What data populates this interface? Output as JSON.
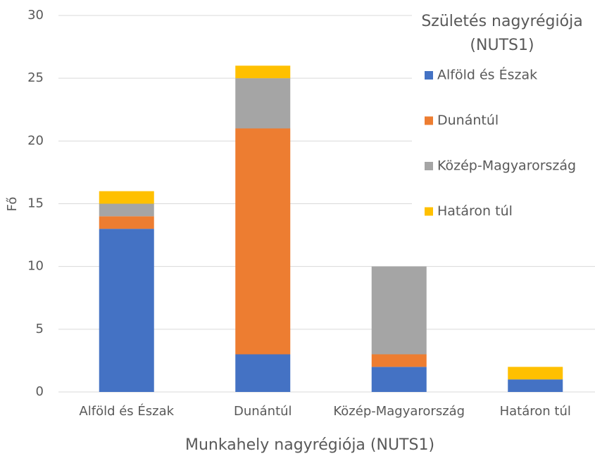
{
  "chart_data": {
    "type": "stacked_bar",
    "x_label": "Munkahely nagyrégiója (NUTS1)",
    "y_label": "Fő",
    "legend_title": "Születés nagyrégiója (NUTS1)",
    "categories": [
      "Alföld és Észak",
      "Dunántúl",
      "Közép-Magyarország",
      "Határon túl"
    ],
    "series": [
      {
        "name": "Alföld és Észak",
        "color": "#4472c4",
        "values": [
          13,
          3,
          2,
          1
        ]
      },
      {
        "name": "Dunántúl",
        "color": "#ed7d31",
        "values": [
          1,
          18,
          1,
          0
        ]
      },
      {
        "name": "Közép-Magyarország",
        "color": "#a5a5a5",
        "values": [
          1,
          4,
          7,
          0
        ]
      },
      {
        "name": "Határon túl",
        "color": "#ffc000",
        "values": [
          1,
          1,
          0,
          1
        ]
      }
    ],
    "ylim": [
      0,
      30
    ],
    "yticks": [
      0,
      5,
      10,
      15,
      20,
      25,
      30
    ],
    "grid": true,
    "legend": "upper right"
  }
}
